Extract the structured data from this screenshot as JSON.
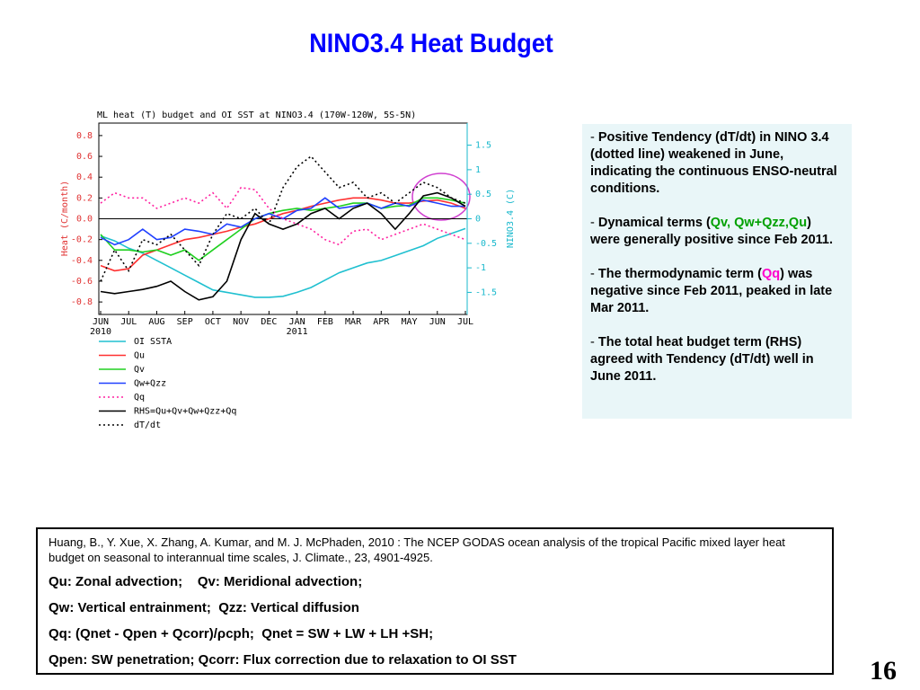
{
  "title": "NINO3.4 Heat Budget",
  "chart_data": {
    "type": "line",
    "title": "ML heat (T) budget and OI SST at NINO3.4 (170W-120W, 5S-5N)",
    "y_label": "Heat (C/month)",
    "y2_label": "NINO3.4 (C)",
    "categories": [
      "JUN",
      null,
      "JUL",
      null,
      "AUG",
      null,
      "SEP",
      null,
      "OCT",
      null,
      "NOV",
      null,
      "DEC",
      null,
      "JAN",
      null,
      "FEB",
      null,
      "MAR",
      null,
      "APR",
      null,
      "MAY",
      null,
      "JUN",
      null,
      "JUL"
    ],
    "year_ticks": [
      {
        "value": 0,
        "label": "2010"
      },
      {
        "value": 14,
        "label": "2011"
      }
    ],
    "ylim": [
      -0.92,
      0.92
    ],
    "yticks": [
      -0.8,
      -0.6,
      -0.4,
      -0.2,
      {
        "value": 0,
        "label": "0.0"
      },
      0.2,
      0.4,
      0.6,
      0.8
    ],
    "y2lim": [
      -1.95,
      1.95
    ],
    "y2ticks": [
      -1.5,
      -1,
      -0.5,
      0,
      0.5,
      1,
      1.5
    ],
    "y_color": "#e03030",
    "y2_color": "#18b8cc",
    "zero_line": true,
    "series": [
      {
        "name": "OI SSTA",
        "color": "#20c0d0",
        "style": "solid",
        "axis": "y2",
        "values": [
          -0.35,
          -0.45,
          -0.6,
          -0.7,
          -0.85,
          -1.0,
          -1.15,
          -1.3,
          -1.45,
          -1.5,
          -1.55,
          -1.6,
          -1.6,
          -1.58,
          -1.5,
          -1.4,
          -1.25,
          -1.1,
          -1.0,
          -0.9,
          -0.85,
          -0.75,
          -0.65,
          -0.55,
          -0.4,
          -0.3,
          -0.2
        ]
      },
      {
        "name": "Qu",
        "color": "#ff3030",
        "style": "solid",
        "values": [
          -0.45,
          -0.5,
          -0.48,
          -0.35,
          -0.3,
          -0.25,
          -0.2,
          -0.18,
          -0.15,
          -0.12,
          -0.08,
          -0.05,
          0.0,
          0.05,
          0.08,
          0.12,
          0.15,
          0.18,
          0.2,
          0.2,
          0.18,
          0.15,
          0.15,
          0.17,
          0.18,
          0.15,
          0.1
        ]
      },
      {
        "name": "Qv",
        "color": "#20d020",
        "style": "solid",
        "values": [
          -0.15,
          -0.3,
          -0.3,
          -0.32,
          -0.3,
          -0.35,
          -0.3,
          -0.4,
          -0.3,
          -0.2,
          -0.1,
          0.0,
          0.05,
          0.08,
          0.1,
          0.08,
          0.1,
          0.12,
          0.15,
          0.15,
          0.1,
          0.12,
          0.13,
          0.2,
          0.2,
          0.18,
          0.15
        ]
      },
      {
        "name": "Qw+Qzz",
        "color": "#2040ff",
        "style": "solid",
        "values": [
          -0.18,
          -0.25,
          -0.2,
          -0.1,
          -0.2,
          -0.18,
          -0.1,
          -0.12,
          -0.15,
          -0.05,
          -0.08,
          0.0,
          0.05,
          0.0,
          0.08,
          0.1,
          0.2,
          0.1,
          0.12,
          0.15,
          0.1,
          0.15,
          0.12,
          0.18,
          0.15,
          0.12,
          0.12
        ]
      },
      {
        "name": "Qq",
        "color": "#ff20a0",
        "style": "dotted",
        "values": [
          0.15,
          0.25,
          0.2,
          0.2,
          0.1,
          0.15,
          0.2,
          0.15,
          0.25,
          0.1,
          0.3,
          0.28,
          0.1,
          0.0,
          -0.05,
          -0.1,
          -0.2,
          -0.25,
          -0.12,
          -0.1,
          -0.2,
          -0.15,
          -0.1,
          -0.05,
          -0.1,
          -0.15,
          -0.2
        ]
      },
      {
        "name": "RHS=Qu+Qv+Qw+Qzz+Qq",
        "color": "#000000",
        "style": "solid",
        "values": [
          -0.7,
          -0.72,
          -0.7,
          -0.68,
          -0.65,
          -0.6,
          -0.7,
          -0.78,
          -0.75,
          -0.6,
          -0.2,
          0.05,
          -0.05,
          -0.1,
          -0.05,
          0.05,
          0.1,
          0.0,
          0.1,
          0.15,
          0.05,
          -0.1,
          0.05,
          0.22,
          0.25,
          0.2,
          0.12
        ]
      },
      {
        "name": "dT/dt",
        "color": "#000000",
        "style": "dotted",
        "values": [
          -0.6,
          -0.3,
          -0.5,
          -0.2,
          -0.25,
          -0.15,
          -0.3,
          -0.45,
          -0.15,
          0.05,
          0.0,
          0.1,
          -0.05,
          0.3,
          0.5,
          0.6,
          0.45,
          0.3,
          0.35,
          0.2,
          0.25,
          0.15,
          0.25,
          0.35,
          0.3,
          0.2,
          0.15
        ]
      }
    ]
  },
  "notes": [
    [
      {
        "text": "- ",
        "weight": "normal"
      },
      {
        "text": "Positive Tendency (dT/dt) in NINO 3.4 (dotted line) weakened in June, indicating the continuous ENSO-neutral conditions."
      }
    ],
    [
      {
        "text": "- ",
        "weight": "normal"
      },
      {
        "text": "Dynamical terms ("
      },
      {
        "text": "Qv, Qw+Qzz,Qu",
        "color": "#00a000"
      },
      {
        "text": ") were generally positive since Feb 2011."
      }
    ],
    [
      {
        "text": "- ",
        "weight": "normal"
      },
      {
        "text": "The thermodynamic term ("
      },
      {
        "text": "Qq",
        "color": "#ff00cc"
      },
      {
        "text": ") was negative since Feb 2011, peaked in late Mar 2011."
      }
    ],
    [
      {
        "text": "- ",
        "weight": "normal"
      },
      {
        "text": "The total heat budget term (RHS) agreed with Tendency (dT/dt) well in June 2011."
      }
    ]
  ],
  "reference": {
    "citation": "Huang, B., Y. Xue, X. Zhang, A. Kumar, and M. J. McPhaden, 2010 : The NCEP GODAS ocean analysis of the tropical Pacific mixed layer heat budget on seasonal to interannual time scales,  J. Climate., 23, 4901-4925.",
    "definitions": [
      "Qu: Zonal advection;    Qv: Meridional advection;",
      "Qw: Vertical entrainment;  Qzz: Vertical diffusion",
      "Qq: (Qnet - Qpen + Qcorr)/ρcph;  Qnet = SW + LW + LH +SH;",
      "Qpen: SW penetration; Qcorr: Flux correction due to relaxation to OI SST"
    ]
  },
  "page_number": "16"
}
